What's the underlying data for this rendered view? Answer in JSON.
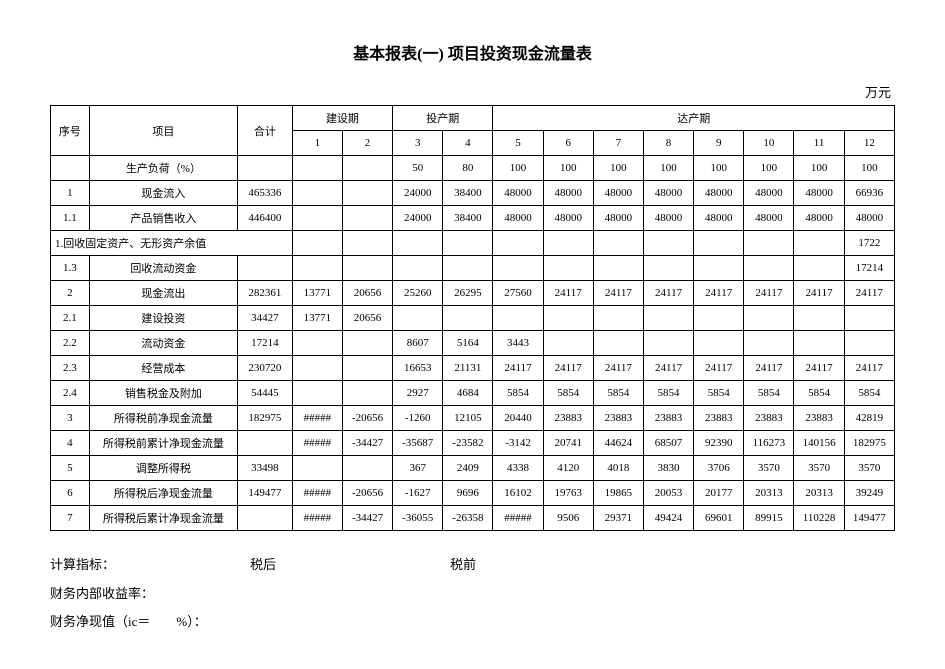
{
  "title": "基本报表(一) 项目投资现金流量表",
  "unit": "万元",
  "header": {
    "seq": "序号",
    "item": "项目",
    "total": "合计",
    "construction": "建设期",
    "startup": "投产期",
    "full": "达产期",
    "periods": [
      "1",
      "2",
      "3",
      "4",
      "5",
      "6",
      "7",
      "8",
      "9",
      "10",
      "11",
      "12"
    ]
  },
  "rows": [
    {
      "seq": "",
      "item": "生产负荷（%）",
      "total": "",
      "cells": [
        "",
        "",
        "50",
        "80",
        "100",
        "100",
        "100",
        "100",
        "100",
        "100",
        "100",
        "100"
      ]
    },
    {
      "seq": "1",
      "item": "现金流入",
      "total": "465336",
      "cells": [
        "",
        "",
        "24000",
        "38400",
        "48000",
        "48000",
        "48000",
        "48000",
        "48000",
        "48000",
        "48000",
        "66936"
      ]
    },
    {
      "seq": "1.1",
      "item": "产品销售收入",
      "total": "446400",
      "cells": [
        "",
        "",
        "24000",
        "38400",
        "48000",
        "48000",
        "48000",
        "48000",
        "48000",
        "48000",
        "48000",
        "48000"
      ]
    },
    {
      "seq": "1.回收固定资产、无形资产余值",
      "item": "",
      "total": "",
      "special": true,
      "cells": [
        "",
        "",
        "",
        "",
        "",
        "",
        "",
        "",
        "",
        "",
        "",
        "1722"
      ]
    },
    {
      "seq": "1.3",
      "item": "回收流动资金",
      "total": "",
      "cells": [
        "",
        "",
        "",
        "",
        "",
        "",
        "",
        "",
        "",
        "",
        "",
        "17214"
      ]
    },
    {
      "seq": "2",
      "item": "现金流出",
      "total": "282361",
      "cells": [
        "13771",
        "20656",
        "25260",
        "26295",
        "27560",
        "24117",
        "24117",
        "24117",
        "24117",
        "24117",
        "24117",
        "24117"
      ]
    },
    {
      "seq": "2.1",
      "item": "建设投资",
      "total": "34427",
      "cells": [
        "13771",
        "20656",
        "",
        "",
        "",
        "",
        "",
        "",
        "",
        "",
        "",
        ""
      ]
    },
    {
      "seq": "2.2",
      "item": "流动资金",
      "total": "17214",
      "cells": [
        "",
        "",
        "8607",
        "5164",
        "3443",
        "",
        "",
        "",
        "",
        "",
        "",
        ""
      ]
    },
    {
      "seq": "2.3",
      "item": "经营成本",
      "total": "230720",
      "cells": [
        "",
        "",
        "16653",
        "21131",
        "24117",
        "24117",
        "24117",
        "24117",
        "24117",
        "24117",
        "24117",
        "24117"
      ]
    },
    {
      "seq": "2.4",
      "item": "销售税金及附加",
      "total": "54445",
      "cells": [
        "",
        "",
        "2927",
        "4684",
        "5854",
        "5854",
        "5854",
        "5854",
        "5854",
        "5854",
        "5854",
        "5854"
      ]
    },
    {
      "seq": "3",
      "item": "所得税前净现金流量",
      "total": "182975",
      "cells": [
        "#####",
        "-20656",
        "-1260",
        "12105",
        "20440",
        "23883",
        "23883",
        "23883",
        "23883",
        "23883",
        "23883",
        "42819"
      ]
    },
    {
      "seq": "4",
      "item": "所得税前累计净现金流量",
      "total": "",
      "cells": [
        "#####",
        "-34427",
        "-35687",
        "-23582",
        "-3142",
        "20741",
        "44624",
        "68507",
        "92390",
        "116273",
        "140156",
        "182975"
      ]
    },
    {
      "seq": "5",
      "item": "调整所得税",
      "total": "33498",
      "cells": [
        "",
        "",
        "367",
        "2409",
        "4338",
        "4120",
        "4018",
        "3830",
        "3706",
        "3570",
        "3570",
        "3570"
      ]
    },
    {
      "seq": "6",
      "item": "所得税后净现金流量",
      "total": "149477",
      "cells": [
        "#####",
        "-20656",
        "-1627",
        "9696",
        "16102",
        "19763",
        "19865",
        "20053",
        "20177",
        "20313",
        "20313",
        "39249"
      ]
    },
    {
      "seq": "7",
      "item": "所得税后累计净现金流量",
      "total": "",
      "cells": [
        "#####",
        "-34427",
        "-36055",
        "-26358",
        "#####",
        "9506",
        "29371",
        "49424",
        "69601",
        "89915",
        "110228",
        "149477"
      ]
    }
  ],
  "indicators": {
    "label": "计算指标：",
    "afterTax": "税后",
    "beforeTax": "税前",
    "irr": "财务内部收益率：",
    "npv": "财务净现值（ic＝　　%）："
  }
}
